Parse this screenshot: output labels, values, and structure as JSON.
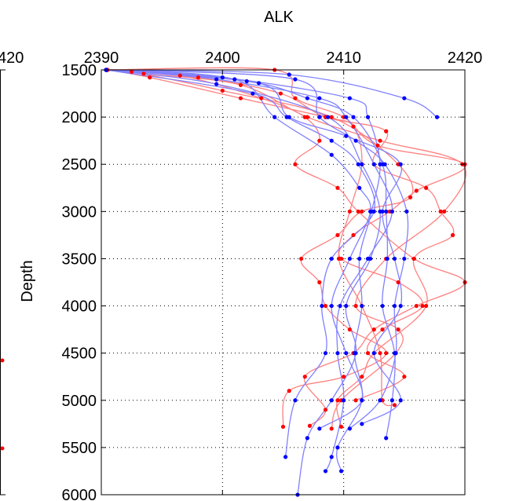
{
  "chart_data": {
    "type": "line",
    "title": "ALK",
    "xlabel": "",
    "ylabel": "Depth",
    "xlim": [
      2390,
      2420
    ],
    "ylim": [
      1500,
      6000
    ],
    "y_reversed": true,
    "x_axis_location": "top",
    "grid": true,
    "grid_style": "dotted",
    "xticks": [
      "2390",
      "2400",
      "2410",
      "2420"
    ],
    "yticks": [
      "1500",
      "2000",
      "2500",
      "3000",
      "3500",
      "4000",
      "4500",
      "5000",
      "5500",
      "6000"
    ],
    "left_panel_partial_tick": "420",
    "colors": {
      "blue_series": "#0000ff",
      "blue_line": "#8080ff",
      "red_series": "#ff0000",
      "red_line": "#ff8080",
      "axis": "#000000",
      "grid": "#000000"
    },
    "series": [
      {
        "color": "blue",
        "points": [
          [
            2390.4,
            1500
          ],
          [
            2402.5,
            1750
          ],
          [
            2405.3,
            2000
          ],
          [
            2409.0,
            2250
          ],
          [
            2411.2,
            2500
          ],
          [
            2412.5,
            3000
          ],
          [
            2409.0,
            3500
          ],
          [
            2408.2,
            4000
          ],
          [
            2408.5,
            4500
          ],
          [
            2406.0,
            5000
          ],
          [
            2405.2,
            5600
          ]
        ]
      },
      {
        "color": "blue",
        "points": [
          [
            2390.4,
            1500
          ],
          [
            2399.5,
            1600
          ],
          [
            2408.0,
            1800
          ],
          [
            2410.2,
            2000
          ],
          [
            2412.5,
            2500
          ],
          [
            2414.0,
            3000
          ],
          [
            2412.0,
            3500
          ],
          [
            2409.7,
            4000
          ],
          [
            2409.5,
            4500
          ],
          [
            2410.0,
            5000
          ],
          [
            2409.0,
            5600
          ],
          [
            2408.5,
            5750
          ]
        ]
      },
      {
        "color": "blue",
        "points": [
          [
            2390.4,
            1500
          ],
          [
            2400.0,
            1580
          ],
          [
            2410.5,
            1800
          ],
          [
            2412.0,
            2000
          ],
          [
            2413.0,
            2500
          ],
          [
            2412.3,
            3000
          ],
          [
            2411.3,
            3500
          ],
          [
            2411.5,
            4000
          ],
          [
            2410.9,
            4500
          ],
          [
            2411.5,
            5000
          ],
          [
            2409.5,
            5500
          ],
          [
            2409.8,
            5750
          ]
        ]
      },
      {
        "color": "blue",
        "points": [
          [
            2390.4,
            1500
          ],
          [
            2405.5,
            1550
          ],
          [
            2415.0,
            1800
          ],
          [
            2417.7,
            2000
          ]
        ]
      },
      {
        "color": "blue",
        "points": [
          [
            2390.4,
            1500
          ],
          [
            2402.0,
            1620
          ],
          [
            2407.0,
            1800
          ],
          [
            2410.8,
            2000
          ],
          [
            2413.2,
            2500
          ],
          [
            2413.5,
            3000
          ],
          [
            2413.6,
            3500
          ],
          [
            2413.2,
            4000
          ],
          [
            2414.2,
            4500
          ],
          [
            2414.0,
            5000
          ],
          [
            2413.5,
            5400
          ]
        ]
      },
      {
        "color": "blue",
        "points": [
          [
            2390.4,
            1500
          ],
          [
            2406.0,
            1600
          ],
          [
            2408.0,
            2000
          ],
          [
            2411.0,
            2250
          ],
          [
            2413.4,
            2500
          ],
          [
            2415.2,
            3000
          ],
          [
            2415.0,
            3500
          ],
          [
            2414.2,
            4000
          ],
          [
            2414.3,
            4500
          ],
          [
            2413.0,
            5000
          ],
          [
            2410.5,
            5300
          ]
        ]
      },
      {
        "color": "blue",
        "points": [
          [
            2390.4,
            1500
          ],
          [
            2401.0,
            1600
          ],
          [
            2404.3,
            2000
          ],
          [
            2409.0,
            2400
          ],
          [
            2411.3,
            2750
          ],
          [
            2412.2,
            3000
          ],
          [
            2410.5,
            3500
          ],
          [
            2409.0,
            4000
          ],
          [
            2410.2,
            4500
          ],
          [
            2411.5,
            5000
          ],
          [
            2408.0,
            5300
          ]
        ]
      },
      {
        "color": "blue",
        "points": [
          [
            2390.4,
            1500
          ],
          [
            2399.5,
            1650
          ],
          [
            2408.7,
            2000
          ],
          [
            2411.5,
            2500
          ],
          [
            2413.0,
            3000
          ],
          [
            2412.2,
            3500
          ],
          [
            2410.2,
            4000
          ],
          [
            2411.0,
            4500
          ],
          [
            2409.0,
            5000
          ],
          [
            2407.0,
            5400
          ],
          [
            2406.2,
            6000
          ]
        ]
      },
      {
        "color": "blue",
        "points": [
          [
            2390.4,
            1500
          ],
          [
            2403.0,
            1640
          ],
          [
            2405.5,
            2000
          ],
          [
            2410.2,
            2200
          ],
          [
            2414.7,
            2500
          ],
          [
            2413.2,
            3000
          ],
          [
            2414.2,
            3500
          ],
          [
            2414.7,
            4000
          ],
          [
            2412.5,
            4500
          ],
          [
            2414.7,
            5000
          ],
          [
            2411.5,
            5250
          ]
        ]
      },
      {
        "color": "red",
        "points": [
          [
            2390.5,
            1500
          ],
          [
            2392.5,
            1520
          ],
          [
            2400.0,
            1720
          ],
          [
            2409.0,
            2000
          ],
          [
            2414.5,
            2500
          ],
          [
            2415.5,
            2850
          ],
          [
            2411.5,
            3000
          ],
          [
            2409.5,
            3250
          ],
          [
            2406.5,
            3500
          ],
          [
            2408.0,
            3750
          ],
          [
            2408.5,
            4000
          ],
          [
            2410.5,
            4250
          ],
          [
            2413.5,
            4500
          ],
          [
            2410.0,
            4750
          ],
          [
            2405.5,
            4900
          ],
          [
            2405.0,
            5280
          ]
        ]
      },
      {
        "color": "red",
        "points": [
          [
            2390.5,
            1500
          ],
          [
            2394.0,
            1580
          ],
          [
            2401.5,
            1800
          ],
          [
            2408.5,
            2000
          ],
          [
            2410.8,
            2100
          ],
          [
            2411.5,
            2500
          ],
          [
            2410.5,
            3000
          ],
          [
            2409.6,
            3500
          ],
          [
            2411.5,
            4000
          ],
          [
            2413.0,
            4500
          ],
          [
            2413.2,
            5000
          ],
          [
            2414.2,
            5050
          ]
        ]
      },
      {
        "color": "red",
        "points": [
          [
            2390.5,
            1500
          ],
          [
            2396.5,
            1560
          ],
          [
            2403.2,
            1800
          ],
          [
            2406.8,
            2000
          ],
          [
            2408.0,
            2250
          ],
          [
            2406.0,
            2500
          ],
          [
            2409.5,
            2750
          ],
          [
            2411.2,
            3000
          ],
          [
            2415.8,
            3500
          ],
          [
            2420.0,
            3750
          ],
          [
            2416.0,
            4000
          ],
          [
            2412.5,
            4250
          ],
          [
            2410.8,
            4500
          ],
          [
            2406.8,
            4750
          ],
          [
            2408.5,
            5100
          ],
          [
            2407.2,
            5270
          ]
        ]
      },
      {
        "color": "red",
        "points": [
          [
            2390.5,
            1500
          ],
          [
            2398.0,
            1580
          ],
          [
            2404.8,
            1750
          ],
          [
            2408.5,
            2000
          ],
          [
            2413.5,
            2150
          ],
          [
            2412.5,
            2500
          ],
          [
            2416.8,
            2750
          ],
          [
            2418.0,
            3000
          ],
          [
            2419.0,
            3250
          ],
          [
            2415.8,
            3500
          ],
          [
            2416.8,
            4000
          ],
          [
            2412.5,
            4500
          ],
          [
            2411.5,
            4750
          ],
          [
            2409.5,
            5000
          ],
          [
            2409.8,
            5280
          ]
        ]
      },
      {
        "color": "red",
        "points": [
          [
            2390.5,
            1500
          ],
          [
            2393.5,
            1540
          ],
          [
            2401.5,
            1660
          ],
          [
            2407.0,
            2000
          ],
          [
            2413.0,
            2250
          ],
          [
            2419.8,
            2500
          ],
          [
            2418.3,
            3000
          ],
          [
            2413.5,
            3500
          ],
          [
            2411.0,
            4000
          ],
          [
            2414.5,
            4250
          ],
          [
            2414.3,
            4500
          ],
          [
            2409.8,
            5000
          ],
          [
            2409.0,
            5300
          ]
        ]
      },
      {
        "color": "red",
        "points": [
          [
            2390.5,
            1500
          ],
          [
            2404.3,
            1500
          ],
          [
            2406.0,
            1800
          ],
          [
            2410.0,
            2000
          ],
          [
            2412.8,
            2300
          ],
          [
            2420.0,
            2500
          ],
          [
            2416.0,
            2780
          ],
          [
            2413.8,
            3000
          ],
          [
            2410.8,
            3250
          ],
          [
            2409.8,
            3500
          ],
          [
            2414.5,
            3750
          ],
          [
            2416.5,
            4000
          ],
          [
            2413.2,
            4250
          ],
          [
            2412.0,
            4500
          ],
          [
            2415.0,
            4750
          ],
          [
            2411.0,
            5000
          ]
        ]
      }
    ]
  }
}
